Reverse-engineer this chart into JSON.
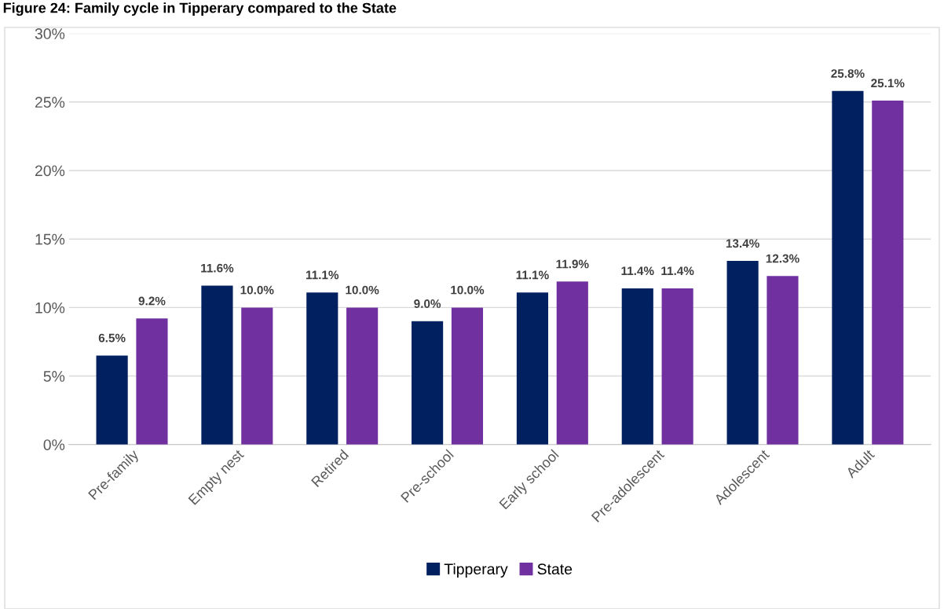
{
  "chart_data": {
    "type": "bar",
    "title": "Figure 24: Family cycle in Tipperary compared to the State",
    "categories": [
      "Pre-family",
      "Empty nest",
      "Retired",
      "Pre-school",
      "Early school",
      "Pre-adolescent",
      "Adolescent",
      "Adult"
    ],
    "series": [
      {
        "name": "Tipperary",
        "color": "#002060",
        "values": [
          6.5,
          11.6,
          11.1,
          9.0,
          11.1,
          11.4,
          13.4,
          25.8
        ],
        "value_labels": [
          "6.5%",
          "11.6%",
          "11.1%",
          "9.0%",
          "11.1%",
          "11.4%",
          "13.4%",
          "25.8%"
        ]
      },
      {
        "name": "State",
        "color": "#7030a0",
        "values": [
          9.2,
          10.0,
          10.0,
          10.0,
          11.9,
          11.4,
          12.3,
          25.1
        ],
        "value_labels": [
          "9.2%",
          "10.0%",
          "10.0%",
          "10.0%",
          "11.9%",
          "11.4%",
          "12.3%",
          "25.1%"
        ]
      }
    ],
    "ylim": [
      0,
      30
    ],
    "yticks": [
      {
        "value": 0,
        "label": "0%"
      },
      {
        "value": 5,
        "label": "5%"
      },
      {
        "value": 10,
        "label": "10%"
      },
      {
        "value": 15,
        "label": "15%"
      },
      {
        "value": 20,
        "label": "20%"
      },
      {
        "value": 25,
        "label": "25%"
      },
      {
        "value": 30,
        "label": "30%"
      }
    ],
    "grid": "y",
    "legend": "bottom"
  }
}
